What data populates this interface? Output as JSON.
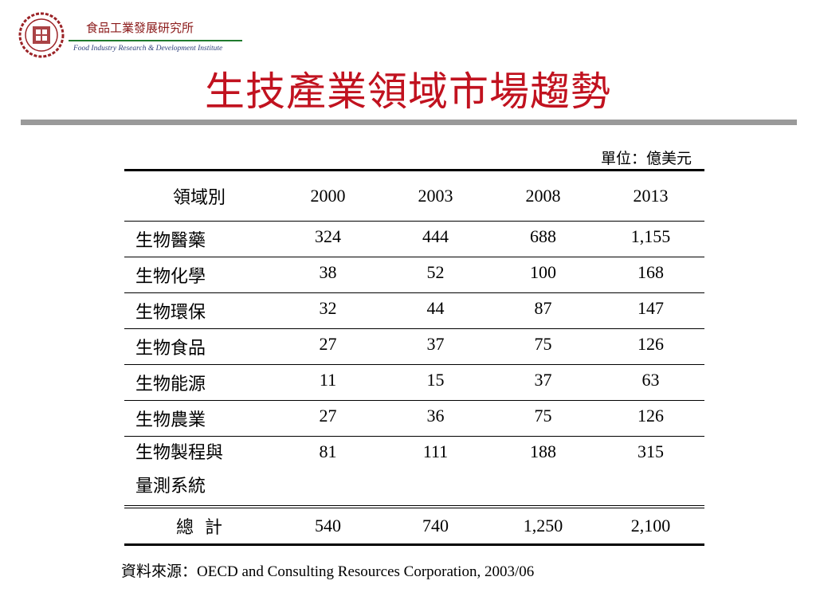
{
  "header": {
    "org_name": "食品工業發展研究所",
    "org_english": "Food Industry Research & Development Institute"
  },
  "colors": {
    "title_red": "#c1121f",
    "org_dark_red": "#8b1a1a",
    "underline_green": "#1f7a2e",
    "rule_gray": "#9a9a9a",
    "logo_red": "#9b2226"
  },
  "slide": {
    "title": "生技產業領域市場趨勢",
    "unit": "單位：億美元",
    "source": "資料來源：OECD and Consulting Resources Corporation, 2003/06"
  },
  "table": {
    "headers": [
      "領域別",
      "2000",
      "2003",
      "2008",
      "2013"
    ],
    "rows": [
      {
        "category": "生物醫藥",
        "values": [
          "324",
          "444",
          "688",
          "1,155"
        ]
      },
      {
        "category": "生物化學",
        "values": [
          "38",
          "52",
          "100",
          "168"
        ]
      },
      {
        "category": "生物環保",
        "values": [
          "32",
          "44",
          "87",
          "147"
        ]
      },
      {
        "category": "生物食品",
        "values": [
          "27",
          "37",
          "75",
          "126"
        ]
      },
      {
        "category": "生物能源",
        "values": [
          "11",
          "15",
          "37",
          "63"
        ]
      },
      {
        "category": "生物農業",
        "values": [
          "27",
          "36",
          "75",
          "126"
        ]
      },
      {
        "category": "生物製程與\n量測系統",
        "values": [
          "81",
          "111",
          "188",
          "315"
        ]
      }
    ],
    "total": {
      "label": "總  計",
      "values": [
        "540",
        "740",
        "1,250",
        "2,100"
      ]
    }
  }
}
